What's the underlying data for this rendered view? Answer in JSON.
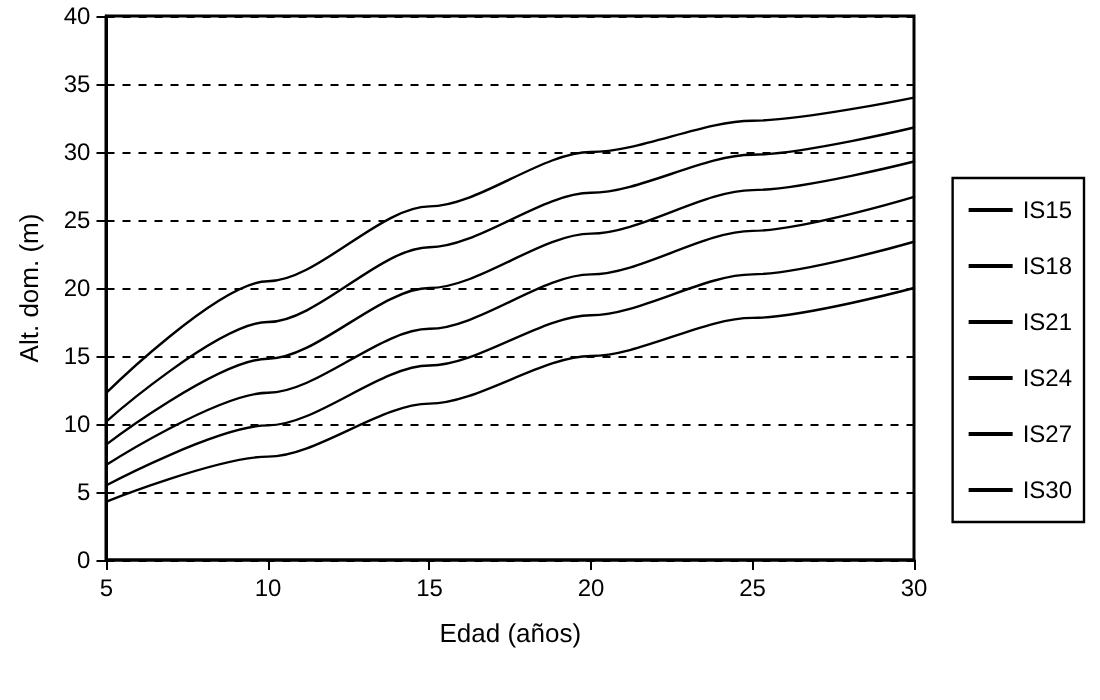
{
  "chart_data": {
    "type": "line",
    "xlabel": "Edad (años)",
    "ylabel": "Alt. dom. (m)",
    "x": [
      5,
      10,
      15,
      20,
      25,
      30
    ],
    "series": [
      {
        "name": "IS15",
        "color": "#000000",
        "values": [
          4.3,
          7.6,
          11.5,
          15,
          17.8,
          20
        ]
      },
      {
        "name": "IS18",
        "color": "#000000",
        "values": [
          5.5,
          9.9,
          14.3,
          18,
          21,
          23.4
        ]
      },
      {
        "name": "IS21",
        "color": "#000000",
        "values": [
          7,
          12.3,
          17,
          21,
          24.2,
          26.7
        ]
      },
      {
        "name": "IS24",
        "color": "#000000",
        "values": [
          8.5,
          14.8,
          20,
          24,
          27.2,
          29.3
        ]
      },
      {
        "name": "IS27",
        "color": "#000000",
        "values": [
          10.2,
          17.5,
          23,
          27,
          29.8,
          31.8
        ]
      },
      {
        "name": "IS30",
        "color": "#000000",
        "values": [
          12.3,
          20.5,
          26,
          30,
          32.3,
          34
        ]
      }
    ],
    "xlim": [
      5,
      30
    ],
    "xticks": [
      5,
      10,
      15,
      20,
      25,
      30
    ],
    "ylim": [
      0,
      40
    ],
    "yticks": [
      0,
      5,
      10,
      15,
      20,
      25,
      30,
      35,
      40
    ],
    "grid": "y",
    "legend": "right",
    "marker": "none",
    "line_style": "solid"
  }
}
